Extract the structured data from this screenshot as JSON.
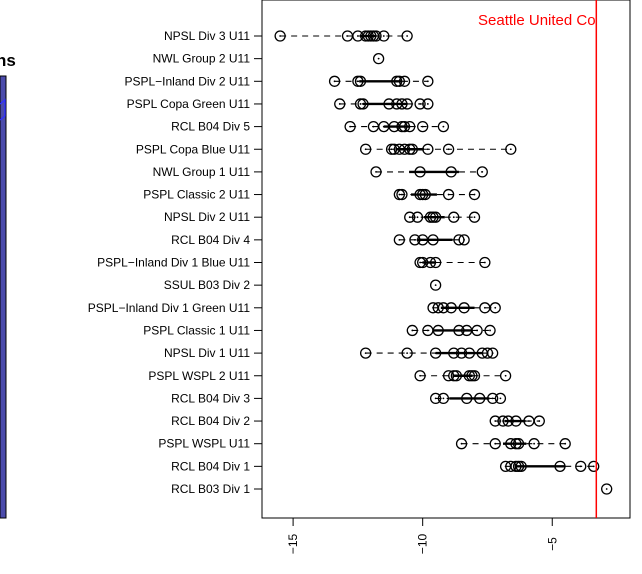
{
  "background_panel": {
    "fragment_text": "ns",
    "fill_color": "#4b4bab"
  },
  "chart_data": {
    "type": "boxplot",
    "orientation": "horizontal",
    "x_axis": {
      "range": [
        -16.2,
        -2.0
      ],
      "ticks": [
        -15,
        -10,
        -5
      ],
      "tick_labels": [
        "−15",
        "−10",
        "−5"
      ]
    },
    "reference_line": {
      "x": -3.3,
      "label": "Seattle United Co",
      "color": "#ff0000"
    },
    "categories": [
      "NPSL Div 3 U11",
      "NWL Group 2 U11",
      "PSPL−Inland Div 2 U11",
      "PSPL Copa Green U11",
      "RCL B04 Div 5",
      "PSPL Copa Blue U11",
      "NWL Group 1 U11",
      "PSPL Classic 2 U11",
      "NPSL Div 2 U11",
      "RCL B04 Div 4",
      "PSPL−Inland Div 1 Blue U11",
      "SSUL B03 Div 2",
      "PSPL−Inland Div 1 Green U11",
      "PSPL Classic 1 U11",
      "NPSL Div 1 U11",
      "PSPL WSPL 2 U11",
      "RCL B04 Div 3",
      "RCL B04 Div 2",
      "PSPL WSPL U11",
      "RCL B04 Div 1",
      "RCL B03 Div 1"
    ],
    "points": [
      [
        -15.5,
        -12.9,
        -12.5,
        -12.2,
        -12.1,
        -12.0,
        -11.9,
        -11.8,
        -11.5,
        -10.6
      ],
      [
        -11.7
      ],
      [
        -13.4,
        -12.5,
        -12.4,
        -11.0,
        -10.9,
        -10.7,
        -9.8
      ],
      [
        -13.2,
        -12.4,
        -12.3,
        -11.3,
        -11.0,
        -10.8,
        -10.6,
        -10.1,
        -9.8
      ],
      [
        -12.8,
        -11.9,
        -11.5,
        -11.1,
        -10.8,
        -10.7,
        -10.5,
        -10.0,
        -9.2
      ],
      [
        -12.2,
        -11.2,
        -11.1,
        -10.9,
        -10.7,
        -10.5,
        -10.4,
        -9.8,
        -9.0,
        -6.6
      ],
      [
        -11.8,
        -10.1,
        -8.9,
        -7.7
      ],
      [
        -10.9,
        -10.8,
        -10.1,
        -10.0,
        -9.9,
        -9.0,
        -8.0
      ],
      [
        -10.5,
        -10.2,
        -9.7,
        -9.6,
        -9.5,
        -8.8,
        -8.0
      ],
      [
        -10.9,
        -10.3,
        -10.0,
        -9.6,
        -8.6,
        -8.4
      ],
      [
        -10.1,
        -10.0,
        -9.7,
        -9.5,
        -7.6
      ],
      [
        -9.5
      ],
      [
        -9.6,
        -9.4,
        -9.2,
        -8.9,
        -8.4,
        -7.6,
        -7.2
      ],
      [
        -10.4,
        -9.8,
        -9.4,
        -8.6,
        -8.3,
        -7.9,
        -7.4
      ],
      [
        -12.2,
        -10.6,
        -9.5,
        -8.8,
        -8.5,
        -8.2,
        -7.7,
        -7.5,
        -7.3
      ],
      [
        -10.1,
        -9.0,
        -8.8,
        -8.7,
        -8.2,
        -8.1,
        -8.0,
        -6.8
      ],
      [
        -9.5,
        -9.2,
        -8.3,
        -7.8,
        -7.3,
        -7.0
      ],
      [
        -7.2,
        -6.9,
        -6.7,
        -6.4,
        -5.9,
        -5.5
      ],
      [
        -8.5,
        -7.2,
        -6.6,
        -6.4,
        -6.3,
        -5.7,
        -4.5
      ],
      [
        -6.8,
        -6.6,
        -6.4,
        -6.3,
        -6.2,
        -4.7,
        -3.9,
        -3.4
      ],
      [
        -2.9
      ]
    ]
  }
}
